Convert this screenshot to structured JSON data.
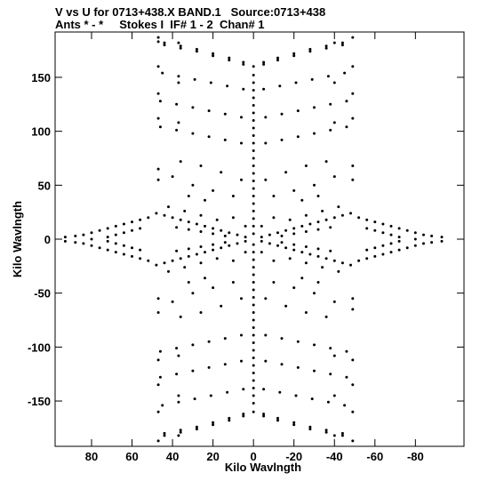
{
  "header": {
    "line1": "V vs U for 0713+438.X BAND.1   Source:0713+438",
    "line2": "Ants * - *     Stokes I  IF# 1 - 2  Chan# 1"
  },
  "chart_data": {
    "type": "scatter",
    "xlabel": "Kilo Wavlngth",
    "ylabel": "Kilo Wavlngth",
    "x_reversed": true,
    "xlim": [
      98,
      -104
    ],
    "ylim": [
      -192,
      192
    ],
    "xticks": [
      80,
      60,
      40,
      20,
      0,
      -20,
      -40,
      -60,
      -80
    ],
    "yticks": [
      150,
      100,
      50,
      0,
      -50,
      -100,
      -150
    ],
    "marker_color": "#000000",
    "points": [
      [
        0,
        160
      ],
      [
        0,
        152
      ],
      [
        0,
        145
      ],
      [
        0,
        138
      ],
      [
        0,
        131
      ],
      [
        0,
        124
      ],
      [
        0,
        117
      ],
      [
        0,
        110
      ],
      [
        0,
        103
      ],
      [
        0,
        96
      ],
      [
        0,
        89
      ],
      [
        0,
        82
      ],
      [
        0,
        75
      ],
      [
        0,
        68
      ],
      [
        0,
        61
      ],
      [
        0,
        54
      ],
      [
        0,
        47
      ],
      [
        0,
        40
      ],
      [
        0,
        33
      ],
      [
        0,
        26
      ],
      [
        0,
        19
      ],
      [
        0,
        12
      ],
      [
        0,
        5
      ],
      [
        0,
        -5
      ],
      [
        0,
        -12
      ],
      [
        0,
        -19
      ],
      [
        0,
        -26
      ],
      [
        0,
        -33
      ],
      [
        0,
        -40
      ],
      [
        0,
        -47
      ],
      [
        0,
        -54
      ],
      [
        0,
        -61
      ],
      [
        0,
        -68
      ],
      [
        0,
        -75
      ],
      [
        0,
        -82
      ],
      [
        0,
        -89
      ],
      [
        0,
        -96
      ],
      [
        0,
        -103
      ],
      [
        0,
        -110
      ],
      [
        0,
        -117
      ],
      [
        0,
        -124
      ],
      [
        0,
        -131
      ],
      [
        0,
        -138
      ],
      [
        0,
        -145
      ],
      [
        0,
        -152
      ],
      [
        0,
        -160
      ],
      [
        44,
        -182
      ],
      [
        36,
        -179
      ],
      [
        28,
        -176
      ],
      [
        20,
        -172
      ],
      [
        12,
        -168
      ],
      [
        5,
        -164
      ],
      [
        -5,
        -164
      ],
      [
        -12,
        -168
      ],
      [
        -20,
        -172
      ],
      [
        -28,
        -176
      ],
      [
        -36,
        -179
      ],
      [
        -44,
        -182
      ],
      [
        45,
        -154
      ],
      [
        37,
        -151
      ],
      [
        29,
        -148
      ],
      [
        21,
        -145
      ],
      [
        13,
        -142
      ],
      [
        5,
        -139
      ],
      [
        -5,
        -139
      ],
      [
        -13,
        -142
      ],
      [
        -21,
        -145
      ],
      [
        -29,
        -148
      ],
      [
        -37,
        -151
      ],
      [
        -45,
        -154
      ],
      [
        46,
        -128
      ],
      [
        38,
        -125
      ],
      [
        30,
        -122
      ],
      [
        22,
        -119
      ],
      [
        14,
        -116
      ],
      [
        6,
        -113
      ],
      [
        -6,
        -113
      ],
      [
        -14,
        -116
      ],
      [
        -22,
        -119
      ],
      [
        -30,
        -122
      ],
      [
        -38,
        -125
      ],
      [
        -46,
        -128
      ],
      [
        46,
        -104
      ],
      [
        38,
        -101
      ],
      [
        30,
        -98
      ],
      [
        22,
        -95
      ],
      [
        14,
        -92
      ],
      [
        6,
        -89
      ],
      [
        -6,
        -89
      ],
      [
        -14,
        -92
      ],
      [
        -22,
        -95
      ],
      [
        -30,
        -98
      ],
      [
        -38,
        -101
      ],
      [
        -46,
        -104
      ],
      [
        44,
        -180
      ],
      [
        36,
        -177
      ],
      [
        28,
        -174
      ],
      [
        20,
        -170
      ],
      [
        12,
        -166
      ],
      [
        5,
        -162
      ],
      [
        -5,
        -162
      ],
      [
        -12,
        -166
      ],
      [
        -20,
        -170
      ],
      [
        -28,
        -174
      ],
      [
        -36,
        -177
      ],
      [
        -44,
        -180
      ],
      [
        44,
        182
      ],
      [
        36,
        179
      ],
      [
        28,
        176
      ],
      [
        20,
        172
      ],
      [
        12,
        168
      ],
      [
        5,
        164
      ],
      [
        -5,
        164
      ],
      [
        -12,
        168
      ],
      [
        -20,
        172
      ],
      [
        -28,
        176
      ],
      [
        -36,
        179
      ],
      [
        -44,
        182
      ],
      [
        45,
        154
      ],
      [
        37,
        151
      ],
      [
        29,
        148
      ],
      [
        21,
        145
      ],
      [
        13,
        142
      ],
      [
        5,
        139
      ],
      [
        -5,
        139
      ],
      [
        -13,
        142
      ],
      [
        -21,
        145
      ],
      [
        -29,
        148
      ],
      [
        -37,
        151
      ],
      [
        -45,
        154
      ],
      [
        46,
        128
      ],
      [
        38,
        125
      ],
      [
        30,
        122
      ],
      [
        22,
        119
      ],
      [
        14,
        116
      ],
      [
        6,
        113
      ],
      [
        -6,
        113
      ],
      [
        -14,
        116
      ],
      [
        -22,
        119
      ],
      [
        -30,
        122
      ],
      [
        -38,
        125
      ],
      [
        -46,
        128
      ],
      [
        46,
        104
      ],
      [
        38,
        101
      ],
      [
        30,
        98
      ],
      [
        22,
        95
      ],
      [
        14,
        92
      ],
      [
        6,
        89
      ],
      [
        -6,
        89
      ],
      [
        -14,
        92
      ],
      [
        -22,
        95
      ],
      [
        -30,
        98
      ],
      [
        -38,
        101
      ],
      [
        -46,
        104
      ],
      [
        44,
        180
      ],
      [
        36,
        177
      ],
      [
        28,
        174
      ],
      [
        20,
        170
      ],
      [
        12,
        166
      ],
      [
        5,
        162
      ],
      [
        -5,
        162
      ],
      [
        -12,
        166
      ],
      [
        -20,
        170
      ],
      [
        -28,
        174
      ],
      [
        -36,
        177
      ],
      [
        -44,
        180
      ],
      [
        47,
        187
      ],
      [
        47,
        183
      ],
      [
        47,
        160
      ],
      [
        47,
        135
      ],
      [
        47,
        112
      ],
      [
        47,
        65
      ],
      [
        47,
        55
      ],
      [
        47,
        -55
      ],
      [
        47,
        -68
      ],
      [
        47,
        -112
      ],
      [
        47,
        -135
      ],
      [
        47,
        -160
      ],
      [
        47,
        -187
      ],
      [
        37,
        182
      ],
      [
        37,
        145
      ],
      [
        37,
        108
      ],
      [
        37,
        -108
      ],
      [
        37,
        -145
      ],
      [
        37,
        -182
      ],
      [
        -49,
        187
      ],
      [
        -49,
        160
      ],
      [
        -49,
        135
      ],
      [
        -49,
        112
      ],
      [
        -49,
        68
      ],
      [
        -49,
        55
      ],
      [
        -49,
        -55
      ],
      [
        -49,
        -65
      ],
      [
        -49,
        -112
      ],
      [
        -49,
        -135
      ],
      [
        -49,
        -160
      ],
      [
        -49,
        -187
      ],
      [
        -40,
        182
      ],
      [
        -40,
        145
      ],
      [
        -40,
        108
      ],
      [
        -40,
        -108
      ],
      [
        -40,
        -145
      ],
      [
        -40,
        -182
      ],
      [
        4,
        2
      ],
      [
        8,
        4
      ],
      [
        12,
        6
      ],
      [
        16,
        8
      ],
      [
        20,
        10
      ],
      [
        24,
        12
      ],
      [
        28,
        14
      ],
      [
        32,
        16
      ],
      [
        36,
        18
      ],
      [
        40,
        20
      ],
      [
        44,
        22
      ],
      [
        48,
        24
      ],
      [
        -4,
        -2
      ],
      [
        -8,
        -4
      ],
      [
        -12,
        -6
      ],
      [
        -16,
        -8
      ],
      [
        -20,
        -10
      ],
      [
        -24,
        -12
      ],
      [
        -28,
        -14
      ],
      [
        -32,
        -16
      ],
      [
        -36,
        -18
      ],
      [
        -40,
        -20
      ],
      [
        -44,
        -22
      ],
      [
        -48,
        -24
      ],
      [
        4,
        -2
      ],
      [
        8,
        -4
      ],
      [
        12,
        -6
      ],
      [
        16,
        -8
      ],
      [
        20,
        -10
      ],
      [
        24,
        -12
      ],
      [
        28,
        -14
      ],
      [
        32,
        -16
      ],
      [
        36,
        -18
      ],
      [
        40,
        -20
      ],
      [
        44,
        -22
      ],
      [
        48,
        -24
      ],
      [
        -4,
        2
      ],
      [
        -8,
        4
      ],
      [
        -12,
        6
      ],
      [
        -16,
        8
      ],
      [
        -20,
        10
      ],
      [
        -24,
        12
      ],
      [
        -28,
        14
      ],
      [
        -32,
        16
      ],
      [
        -36,
        18
      ],
      [
        -40,
        20
      ],
      [
        -44,
        22
      ],
      [
        -48,
        24
      ],
      [
        52,
        20
      ],
      [
        56,
        18
      ],
      [
        60,
        16
      ],
      [
        64,
        14
      ],
      [
        68,
        12
      ],
      [
        72,
        10
      ],
      [
        76,
        8
      ],
      [
        80,
        6
      ],
      [
        84,
        4
      ],
      [
        88,
        3
      ],
      [
        93,
        2
      ],
      [
        52,
        -20
      ],
      [
        56,
        -18
      ],
      [
        60,
        -16
      ],
      [
        64,
        -14
      ],
      [
        68,
        -12
      ],
      [
        72,
        -10
      ],
      [
        76,
        -8
      ],
      [
        80,
        -6
      ],
      [
        84,
        -4
      ],
      [
        88,
        -3
      ],
      [
        93,
        -2
      ],
      [
        -52,
        20
      ],
      [
        -56,
        18
      ],
      [
        -60,
        16
      ],
      [
        -64,
        14
      ],
      [
        -68,
        12
      ],
      [
        -72,
        10
      ],
      [
        -76,
        8
      ],
      [
        -80,
        6
      ],
      [
        -84,
        4
      ],
      [
        -88,
        3
      ],
      [
        -93,
        2
      ],
      [
        -52,
        -20
      ],
      [
        -56,
        -18
      ],
      [
        -60,
        -16
      ],
      [
        -64,
        -14
      ],
      [
        -68,
        -12
      ],
      [
        -72,
        -10
      ],
      [
        -76,
        -8
      ],
      [
        -80,
        -6
      ],
      [
        -84,
        -4
      ],
      [
        -88,
        -3
      ],
      [
        -93,
        -2
      ],
      [
        4,
        12
      ],
      [
        4,
        -12
      ],
      [
        -4,
        12
      ],
      [
        -4,
        -12
      ],
      [
        10,
        20
      ],
      [
        -10,
        20
      ],
      [
        10,
        -20
      ],
      [
        -10,
        -20
      ],
      [
        14,
        3
      ],
      [
        20,
        5
      ],
      [
        26,
        7
      ],
      [
        32,
        9
      ],
      [
        38,
        11
      ],
      [
        14,
        -3
      ],
      [
        20,
        -5
      ],
      [
        26,
        -7
      ],
      [
        32,
        -9
      ],
      [
        38,
        -11
      ],
      [
        -14,
        3
      ],
      [
        -20,
        5
      ],
      [
        -26,
        7
      ],
      [
        -32,
        9
      ],
      [
        -38,
        11
      ],
      [
        -14,
        -3
      ],
      [
        -20,
        -5
      ],
      [
        -26,
        -7
      ],
      [
        -32,
        -9
      ],
      [
        -38,
        -11
      ],
      [
        18,
        18
      ],
      [
        26,
        22
      ],
      [
        34,
        26
      ],
      [
        42,
        30
      ],
      [
        18,
        -18
      ],
      [
        26,
        -22
      ],
      [
        34,
        -26
      ],
      [
        42,
        -30
      ],
      [
        -18,
        18
      ],
      [
        -26,
        22
      ],
      [
        -34,
        26
      ],
      [
        -42,
        30
      ],
      [
        -18,
        -18
      ],
      [
        -26,
        -22
      ],
      [
        -34,
        -26
      ],
      [
        -42,
        -30
      ],
      [
        10,
        40
      ],
      [
        20,
        45
      ],
      [
        30,
        50
      ],
      [
        40,
        58
      ],
      [
        -10,
        40
      ],
      [
        -20,
        45
      ],
      [
        -30,
        50
      ],
      [
        -40,
        58
      ],
      [
        10,
        -40
      ],
      [
        20,
        -45
      ],
      [
        30,
        -50
      ],
      [
        40,
        -58
      ],
      [
        -10,
        -40
      ],
      [
        -20,
        -45
      ],
      [
        -30,
        -50
      ],
      [
        -40,
        -58
      ],
      [
        6,
        55
      ],
      [
        16,
        62
      ],
      [
        26,
        68
      ],
      [
        36,
        72
      ],
      [
        -6,
        55
      ],
      [
        -16,
        62
      ],
      [
        -26,
        68
      ],
      [
        -36,
        72
      ],
      [
        6,
        -55
      ],
      [
        16,
        -62
      ],
      [
        26,
        -68
      ],
      [
        36,
        -72
      ],
      [
        -6,
        -55
      ],
      [
        -16,
        -62
      ],
      [
        -26,
        -68
      ],
      [
        -36,
        -72
      ],
      [
        24,
        36
      ],
      [
        32,
        40
      ],
      [
        -24,
        36
      ],
      [
        -32,
        40
      ],
      [
        24,
        -36
      ],
      [
        32,
        -40
      ],
      [
        -24,
        -36
      ],
      [
        -32,
        -40
      ],
      [
        60,
        8
      ],
      [
        68,
        4
      ],
      [
        60,
        -8
      ],
      [
        68,
        -4
      ],
      [
        -60,
        8
      ],
      [
        -68,
        4
      ],
      [
        -60,
        -8
      ],
      [
        -68,
        -4
      ],
      [
        56,
        10
      ],
      [
        64,
        6
      ],
      [
        -56,
        10
      ],
      [
        -64,
        6
      ],
      [
        56,
        -10
      ],
      [
        64,
        -6
      ],
      [
        -56,
        -10
      ],
      [
        -64,
        -6
      ],
      [
        72,
        2
      ],
      [
        80,
        0
      ],
      [
        -72,
        2
      ],
      [
        -80,
        0
      ],
      [
        72,
        -2
      ],
      [
        -72,
        -2
      ]
    ]
  }
}
